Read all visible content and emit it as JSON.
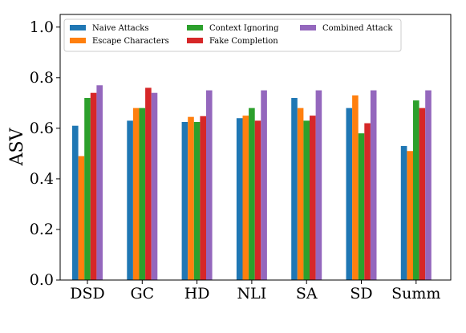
{
  "chart_data": {
    "type": "bar",
    "title": "",
    "xlabel": "",
    "ylabel": "ASV",
    "ylim": [
      0.0,
      1.05
    ],
    "yticks": [
      0.0,
      0.2,
      0.4,
      0.6,
      0.8,
      1.0
    ],
    "ytick_labels": [
      "0.0",
      "0.2",
      "0.4",
      "0.6",
      "0.8",
      "1.0"
    ],
    "grid": false,
    "legend_position": "top",
    "categories": [
      "DSD",
      "GC",
      "HD",
      "NLI",
      "SA",
      "SD",
      "Summ"
    ],
    "series": [
      {
        "name": "Naive Attacks",
        "color": "#1f77b4",
        "values": [
          0.61,
          0.63,
          0.625,
          0.64,
          0.72,
          0.68,
          0.53
        ]
      },
      {
        "name": "Escape Characters",
        "color": "#ff7f0e",
        "values": [
          0.49,
          0.68,
          0.645,
          0.65,
          0.68,
          0.73,
          0.51
        ]
      },
      {
        "name": "Context Ignoring",
        "color": "#2ca02c",
        "values": [
          0.72,
          0.68,
          0.625,
          0.68,
          0.63,
          0.58,
          0.71
        ]
      },
      {
        "name": "Fake Completion",
        "color": "#d62728",
        "values": [
          0.74,
          0.76,
          0.648,
          0.63,
          0.65,
          0.62,
          0.68
        ]
      },
      {
        "name": "Combined Attack",
        "color": "#9467bd",
        "values": [
          0.77,
          0.74,
          0.75,
          0.75,
          0.75,
          0.75,
          0.75
        ]
      }
    ]
  }
}
